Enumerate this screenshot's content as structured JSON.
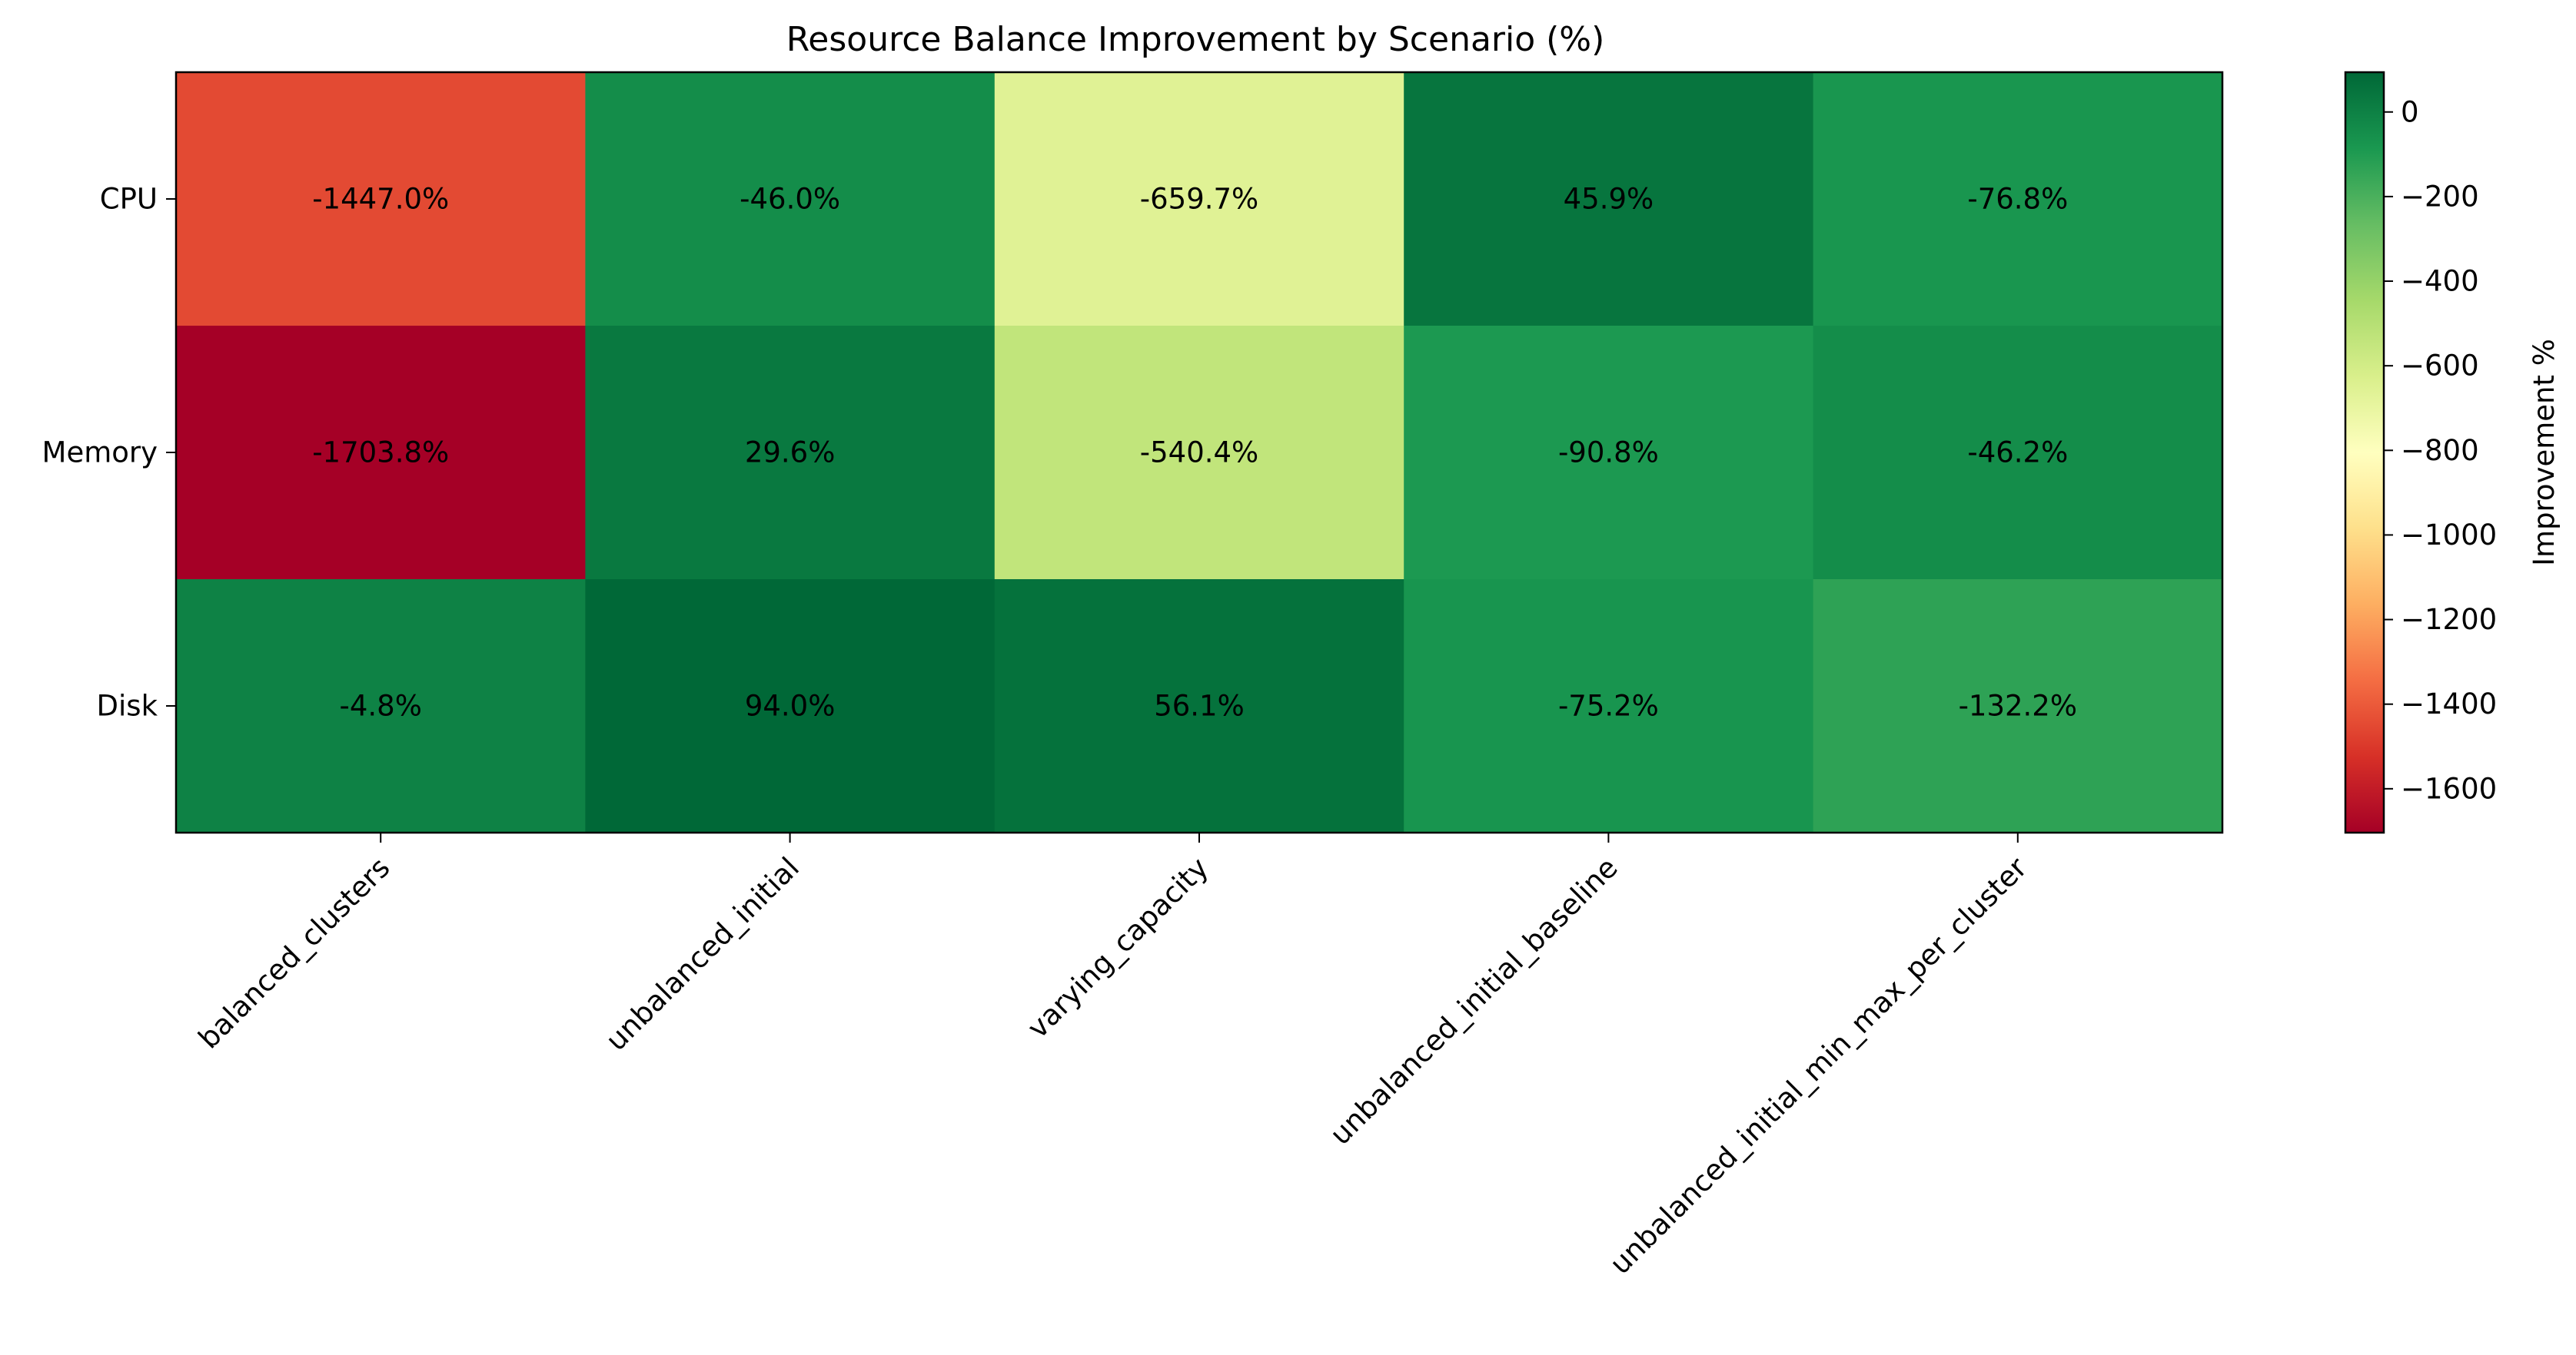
{
  "chart_data": {
    "type": "heatmap",
    "title": "Resource Balance Improvement by Scenario (%)",
    "x_categories": [
      "balanced_clusters",
      "unbalanced_initial",
      "varying_capacity",
      "unbalanced_initial_baseline",
      "unbalanced_initial_min_max_per_cluster"
    ],
    "y_categories": [
      "CPU",
      "Memory",
      "Disk"
    ],
    "values": [
      [
        -1447.0,
        -46.0,
        -659.7,
        45.9,
        -76.8
      ],
      [
        -1703.8,
        29.6,
        -540.4,
        -90.8,
        -46.2
      ],
      [
        -4.8,
        94.0,
        56.1,
        -75.2,
        -132.2
      ]
    ],
    "cell_labels": [
      [
        "-1447.0%",
        "-46.0%",
        "-659.7%",
        "45.9%",
        "-76.8%"
      ],
      [
        "-1703.8%",
        "29.6%",
        "-540.4%",
        "-90.8%",
        "-46.2%"
      ],
      [
        "-4.8%",
        "94.0%",
        "56.1%",
        "-75.2%",
        "-132.2%"
      ]
    ],
    "colorscale": "RdYlGn",
    "vmin": -1703.8,
    "vmax": 94.0,
    "colorbar": {
      "label": "Improvement %",
      "ticks": [
        0,
        -200,
        -400,
        -600,
        -800,
        -1000,
        -1200,
        -1400,
        -1600
      ],
      "tick_labels": [
        "0",
        "−200",
        "−400",
        "−600",
        "−800",
        "−1000",
        "−1200",
        "−1400",
        "−1600"
      ]
    },
    "xlabel": "",
    "ylabel": ""
  }
}
